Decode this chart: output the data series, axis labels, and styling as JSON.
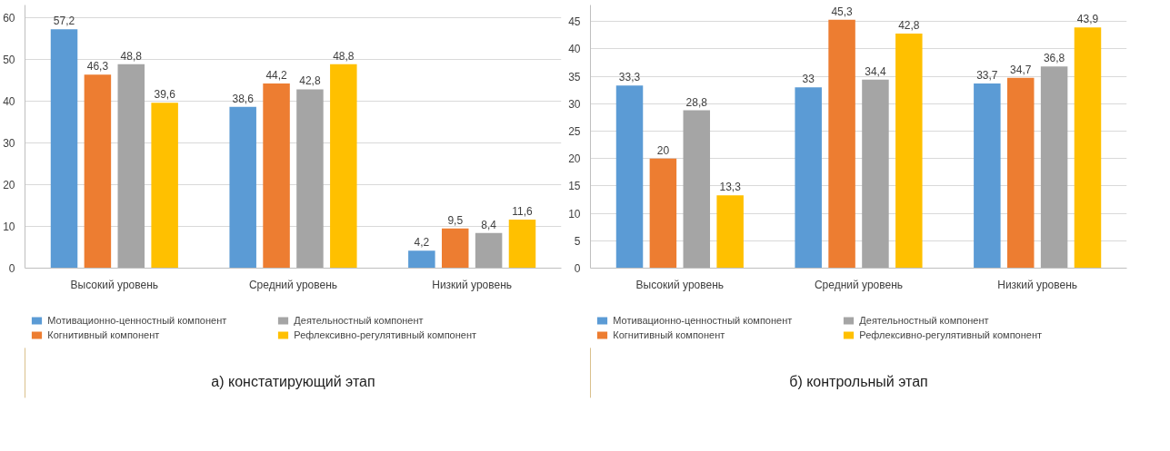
{
  "chart_data": [
    {
      "type": "bar",
      "categories": [
        "Высокий уровень",
        "Средний уровень",
        "Низкий уровень"
      ],
      "ylim": [
        0,
        63
      ],
      "yticks": [
        0,
        10,
        20,
        30,
        40,
        50,
        60
      ],
      "grid": "y",
      "legend": "bottom",
      "annotations": [
        "а) констатирующий этап"
      ],
      "series": [
        {
          "name": "Мотивационно-ценностный компонент",
          "color": "#5b9bd5",
          "values": [
            57.2,
            38.6,
            4.2
          ],
          "value_labels": [
            "57,2",
            "38,6",
            "4,2"
          ]
        },
        {
          "name": "Когнитивный компонент",
          "color": "#ed7d31",
          "values": [
            46.3,
            44.2,
            9.5
          ],
          "value_labels": [
            "46,3",
            "44,2",
            "9,5"
          ]
        },
        {
          "name": "Деятельностный компонент",
          "color": "#a5a5a5",
          "values": [
            48.8,
            42.8,
            8.4
          ],
          "value_labels": [
            "48,8",
            "42,8",
            "8,4"
          ]
        },
        {
          "name": "Рефлексивно-регулятивный компонент",
          "color": "#ffc000",
          "values": [
            39.6,
            48.8,
            11.6
          ],
          "value_labels": [
            "39,6",
            "48,8",
            "11,6"
          ]
        }
      ]
    },
    {
      "type": "bar",
      "categories": [
        "Высокий уровень",
        "Средний уровень",
        "Низкий уровень"
      ],
      "ylim": [
        0,
        48
      ],
      "yticks": [
        0,
        5,
        10,
        15,
        20,
        25,
        30,
        35,
        40,
        45
      ],
      "grid": "y",
      "legend": "bottom",
      "annotations": [
        "б) контрольный этап"
      ],
      "series": [
        {
          "name": "Мотивационно-ценностный компонент",
          "color": "#5b9bd5",
          "values": [
            33.3,
            33,
            33.7
          ],
          "value_labels": [
            "33,3",
            "33",
            "33,7"
          ]
        },
        {
          "name": "Когнитивный компонент",
          "color": "#ed7d31",
          "values": [
            20,
            45.3,
            34.7
          ],
          "value_labels": [
            "20",
            "45,3",
            "34,7"
          ]
        },
        {
          "name": "Деятельностный компонент",
          "color": "#a5a5a5",
          "values": [
            28.8,
            34.4,
            36.8
          ],
          "value_labels": [
            "28,8",
            "34,4",
            "36,8"
          ]
        },
        {
          "name": "Рефлексивно-регулятивный компонент",
          "color": "#ffc000",
          "values": [
            13.3,
            42.8,
            43.9
          ],
          "value_labels": [
            "13,3",
            "42,8",
            "43,9"
          ]
        }
      ]
    }
  ]
}
